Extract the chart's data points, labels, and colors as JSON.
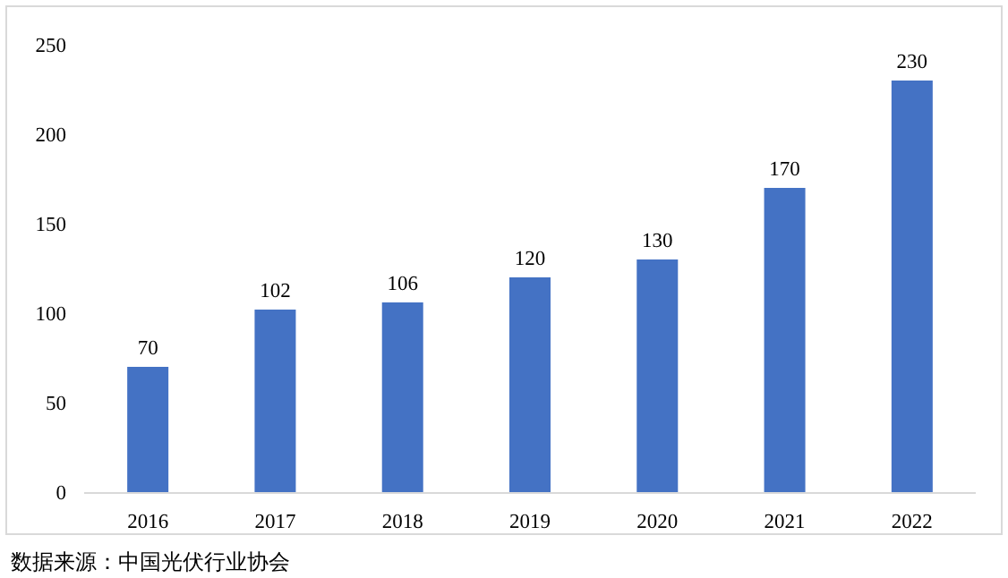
{
  "chart_data": {
    "type": "bar",
    "categories": [
      "2016",
      "2017",
      "2018",
      "2019",
      "2020",
      "2021",
      "2022"
    ],
    "values": [
      70,
      102,
      106,
      120,
      130,
      170,
      230
    ],
    "color": "#4472c4",
    "ylim": [
      0,
      250
    ],
    "yticks": [
      0,
      50,
      100,
      150,
      200,
      250
    ],
    "data_labels": true,
    "annotations": [
      "数据来源：中国光伏行业协会"
    ]
  }
}
